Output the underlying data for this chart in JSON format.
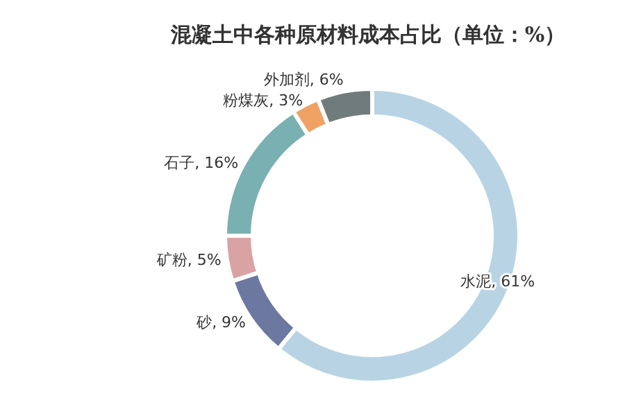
{
  "chart_data": {
    "type": "donut",
    "title": "混凝土中各种原材料成本占比（单位：%）",
    "categories": [
      "水泥, 61%",
      "砂, 9%",
      "矿粉, 5%",
      "石子, 16%",
      "粉煤灰, 3%",
      "外加剂, 6%"
    ],
    "values": [
      61,
      9,
      5,
      16,
      3,
      6
    ],
    "colors": [
      "#b8d4e4",
      "#6c789f",
      "#d9a3a4",
      "#79b0b1",
      "#f0a264",
      "#707b7c"
    ]
  }
}
